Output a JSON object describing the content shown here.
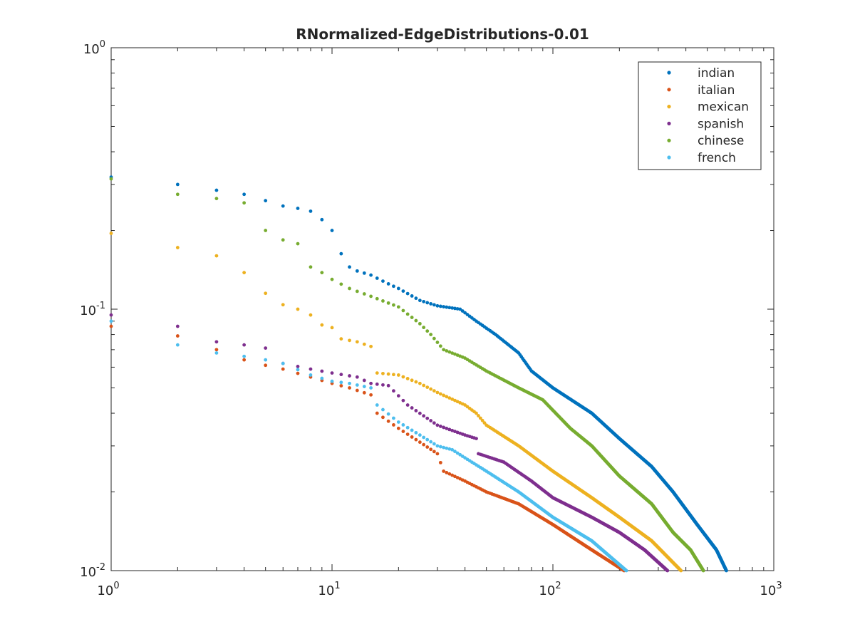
{
  "chart_data": {
    "type": "scatter",
    "title": "RNormalized-EdgeDistributions-0.01",
    "xlabel": "",
    "ylabel": "",
    "xscale": "log",
    "yscale": "log",
    "xlim": [
      1,
      1000
    ],
    "ylim": [
      0.01,
      1
    ],
    "grid": false,
    "legend_position": "top-right",
    "x_ticks": [
      {
        "base": "10",
        "exp": "0"
      },
      {
        "base": "10",
        "exp": "1"
      },
      {
        "base": "10",
        "exp": "2"
      },
      {
        "base": "10",
        "exp": "3"
      }
    ],
    "y_ticks": [
      {
        "base": "10",
        "exp": "-2"
      },
      {
        "base": "10",
        "exp": "-1"
      },
      {
        "base": "10",
        "exp": "0"
      }
    ],
    "series": [
      {
        "name": "indian",
        "color": "#0072BD",
        "n_end": 610,
        "anchors": [
          [
            1,
            0.32
          ],
          [
            2,
            0.3
          ],
          [
            3,
            0.285
          ],
          [
            4,
            0.275
          ],
          [
            5,
            0.26
          ],
          [
            6,
            0.248
          ],
          [
            7,
            0.243
          ],
          [
            8,
            0.237
          ],
          [
            9,
            0.22
          ],
          [
            10,
            0.2
          ],
          [
            11,
            0.163
          ],
          [
            12,
            0.145
          ],
          [
            13,
            0.14
          ],
          [
            15,
            0.135
          ],
          [
            18,
            0.125
          ],
          [
            20,
            0.12
          ],
          [
            25,
            0.108
          ],
          [
            30,
            0.103
          ],
          [
            38,
            0.1
          ],
          [
            45,
            0.09
          ],
          [
            55,
            0.08
          ],
          [
            70,
            0.068
          ],
          [
            80,
            0.058
          ],
          [
            100,
            0.05
          ],
          [
            150,
            0.04
          ],
          [
            200,
            0.032
          ],
          [
            280,
            0.025
          ],
          [
            350,
            0.02
          ],
          [
            450,
            0.015
          ],
          [
            550,
            0.012
          ],
          [
            610,
            0.01
          ]
        ]
      },
      {
        "name": "italian",
        "color": "#D95319",
        "n_end": 210,
        "anchors": [
          [
            1,
            0.086
          ],
          [
            2,
            0.079
          ],
          [
            3,
            0.07
          ],
          [
            4,
            0.064
          ],
          [
            5,
            0.061
          ],
          [
            6,
            0.059
          ],
          [
            8,
            0.055
          ],
          [
            10,
            0.052
          ],
          [
            12,
            0.05
          ],
          [
            15,
            0.047
          ],
          [
            16,
            0.04
          ],
          [
            20,
            0.035
          ],
          [
            25,
            0.031
          ],
          [
            30,
            0.028
          ],
          [
            32,
            0.024
          ],
          [
            40,
            0.022
          ],
          [
            50,
            0.02
          ],
          [
            70,
            0.018
          ],
          [
            100,
            0.015
          ],
          [
            150,
            0.012
          ],
          [
            210,
            0.01
          ]
        ]
      },
      {
        "name": "mexican",
        "color": "#EDB120",
        "n_end": 380,
        "anchors": [
          [
            1,
            0.195
          ],
          [
            2,
            0.172
          ],
          [
            3,
            0.16
          ],
          [
            4,
            0.138
          ],
          [
            5,
            0.115
          ],
          [
            6,
            0.104
          ],
          [
            7,
            0.1
          ],
          [
            8,
            0.095
          ],
          [
            9,
            0.087
          ],
          [
            10,
            0.085
          ],
          [
            11,
            0.077
          ],
          [
            13,
            0.075
          ],
          [
            15,
            0.072
          ],
          [
            16,
            0.057
          ],
          [
            20,
            0.056
          ],
          [
            25,
            0.052
          ],
          [
            30,
            0.048
          ],
          [
            40,
            0.043
          ],
          [
            45,
            0.04
          ],
          [
            50,
            0.036
          ],
          [
            70,
            0.03
          ],
          [
            100,
            0.024
          ],
          [
            150,
            0.019
          ],
          [
            200,
            0.016
          ],
          [
            280,
            0.013
          ],
          [
            380,
            0.01
          ]
        ]
      },
      {
        "name": "spanish",
        "color": "#7E2F8E",
        "n_end": 330,
        "anchors": [
          [
            1,
            0.095
          ],
          [
            2,
            0.086
          ],
          [
            3,
            0.075
          ],
          [
            4,
            0.073
          ],
          [
            5,
            0.071
          ],
          [
            6,
            0.062
          ],
          [
            8,
            0.059
          ],
          [
            10,
            0.057
          ],
          [
            13,
            0.055
          ],
          [
            15,
            0.052
          ],
          [
            18,
            0.051
          ],
          [
            22,
            0.043
          ],
          [
            30,
            0.036
          ],
          [
            40,
            0.033
          ],
          [
            45,
            0.032
          ],
          [
            46,
            0.028
          ],
          [
            60,
            0.026
          ],
          [
            80,
            0.022
          ],
          [
            100,
            0.019
          ],
          [
            150,
            0.016
          ],
          [
            200,
            0.014
          ],
          [
            260,
            0.012
          ],
          [
            330,
            0.01
          ]
        ]
      },
      {
        "name": "chinese",
        "color": "#77AC30",
        "n_end": 480,
        "anchors": [
          [
            1,
            0.315
          ],
          [
            2,
            0.275
          ],
          [
            3,
            0.265
          ],
          [
            4,
            0.255
          ],
          [
            5,
            0.2
          ],
          [
            6,
            0.184
          ],
          [
            7,
            0.178
          ],
          [
            8,
            0.145
          ],
          [
            9,
            0.138
          ],
          [
            10,
            0.13
          ],
          [
            12,
            0.12
          ],
          [
            15,
            0.112
          ],
          [
            20,
            0.102
          ],
          [
            25,
            0.088
          ],
          [
            28,
            0.08
          ],
          [
            32,
            0.07
          ],
          [
            40,
            0.065
          ],
          [
            50,
            0.058
          ],
          [
            70,
            0.05
          ],
          [
            90,
            0.045
          ],
          [
            120,
            0.035
          ],
          [
            150,
            0.03
          ],
          [
            200,
            0.023
          ],
          [
            280,
            0.018
          ],
          [
            350,
            0.014
          ],
          [
            420,
            0.012
          ],
          [
            480,
            0.01
          ]
        ]
      },
      {
        "name": "french",
        "color": "#4DBEEE",
        "n_end": 215,
        "anchors": [
          [
            1,
            0.09
          ],
          [
            2,
            0.073
          ],
          [
            3,
            0.068
          ],
          [
            4,
            0.066
          ],
          [
            5,
            0.064
          ],
          [
            6,
            0.062
          ],
          [
            8,
            0.056
          ],
          [
            10,
            0.053
          ],
          [
            12,
            0.052
          ],
          [
            15,
            0.05
          ],
          [
            16,
            0.043
          ],
          [
            20,
            0.037
          ],
          [
            25,
            0.033
          ],
          [
            30,
            0.03
          ],
          [
            35,
            0.029
          ],
          [
            40,
            0.027
          ],
          [
            50,
            0.024
          ],
          [
            70,
            0.02
          ],
          [
            100,
            0.016
          ],
          [
            150,
            0.013
          ],
          [
            215,
            0.01
          ]
        ]
      }
    ]
  }
}
